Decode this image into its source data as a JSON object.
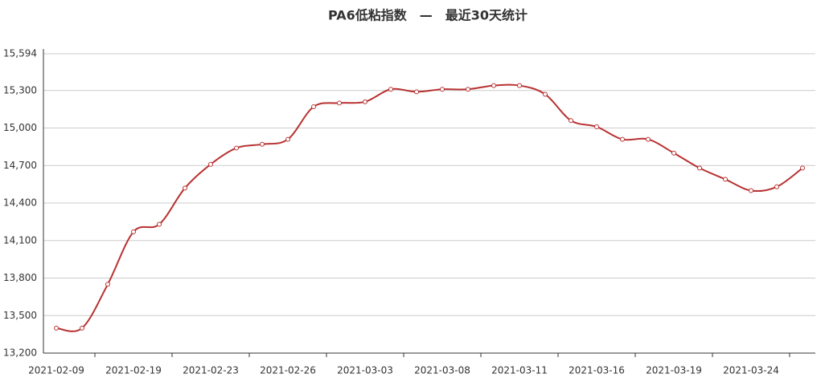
{
  "chart_data": {
    "type": "line",
    "title": "PA6低粘指数　—　最近30天统计",
    "categories": [
      "2021-02-09",
      null,
      null,
      "2021-02-19",
      null,
      null,
      "2021-02-23",
      null,
      null,
      "2021-02-26",
      null,
      null,
      "2021-03-03",
      null,
      null,
      "2021-03-08",
      null,
      null,
      "2021-03-11",
      null,
      null,
      "2021-03-16",
      null,
      null,
      "2021-03-19",
      null,
      null,
      "2021-03-24",
      null,
      null
    ],
    "series": [
      {
        "color": "#b83232",
        "values": [
          13400,
          13400,
          13750,
          14170,
          14230,
          14520,
          14710,
          14840,
          14870,
          14910,
          15170,
          15200,
          15210,
          15310,
          15290,
          15310,
          15310,
          15340,
          15340,
          15270,
          15060,
          15010,
          14910,
          14910,
          14800,
          14680,
          14590,
          14500,
          14530,
          14680
        ]
      }
    ],
    "ylim": [
      13200,
      15594
    ],
    "yticks": [
      {
        "value": 13200,
        "label": "13,200"
      },
      {
        "value": 13500,
        "label": "13,500"
      },
      {
        "value": 13800,
        "label": "13,800"
      },
      {
        "value": 14100,
        "label": "14,100"
      },
      {
        "value": 14400,
        "label": "14,400"
      },
      {
        "value": 14700,
        "label": "14,700"
      },
      {
        "value": 15000,
        "label": "15,000"
      },
      {
        "value": 15300,
        "label": "15,300"
      },
      {
        "value": 15594,
        "label": "15,594"
      }
    ],
    "grid": true,
    "smooth": true
  }
}
